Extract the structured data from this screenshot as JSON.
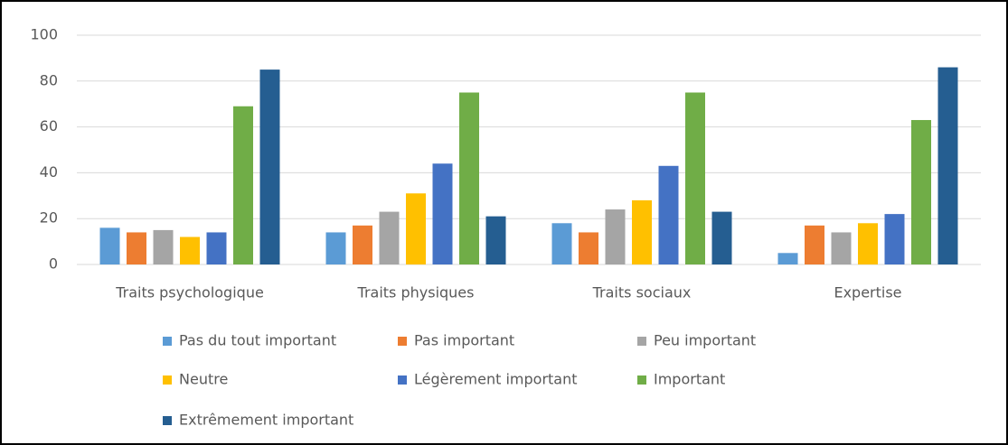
{
  "chart_data": {
    "type": "bar",
    "categories": [
      "Traits psychologique",
      "Traits physiques",
      "Traits sociaux",
      "Expertise"
    ],
    "series": [
      {
        "name": "Pas du tout important",
        "color": "#5b9bd5",
        "values": [
          16,
          14,
          18,
          5
        ]
      },
      {
        "name": "Pas important",
        "color": "#ed7d31",
        "values": [
          14,
          17,
          14,
          17
        ]
      },
      {
        "name": "Peu important",
        "color": "#a5a5a5",
        "values": [
          15,
          23,
          24,
          14
        ]
      },
      {
        "name": "Neutre",
        "color": "#ffc000",
        "values": [
          12,
          31,
          28,
          18
        ]
      },
      {
        "name": "Légèrement important",
        "color": "#4472c4",
        "values": [
          14,
          44,
          43,
          22
        ]
      },
      {
        "name": "Important",
        "color": "#70ad47",
        "values": [
          69,
          75,
          75,
          63
        ]
      },
      {
        "name": "Extrêmement important",
        "color": "#255e91",
        "values": [
          85,
          21,
          23,
          86
        ]
      }
    ],
    "ylim": [
      0,
      100
    ],
    "yticks": [
      0,
      20,
      40,
      60,
      80,
      100
    ],
    "grid": true,
    "legend": "bottom"
  }
}
